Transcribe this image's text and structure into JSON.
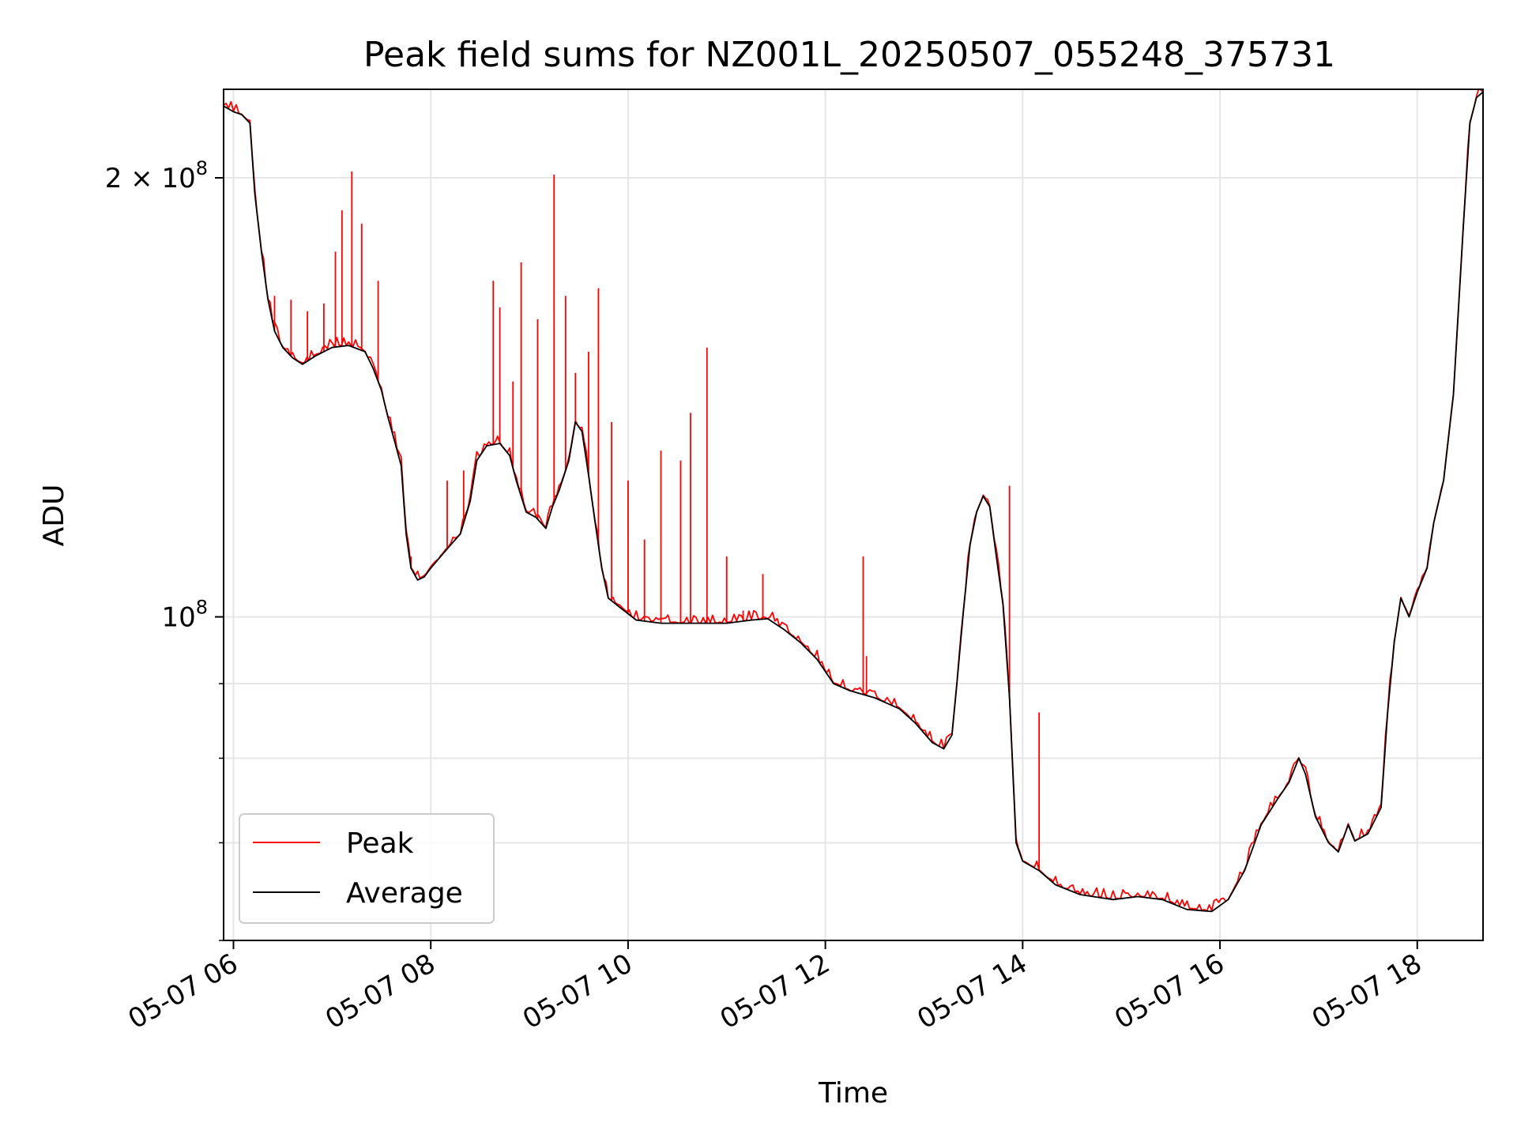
{
  "chart_data": {
    "type": "line",
    "title": "Peak field sums for NZ001L_20250507_055248_375731",
    "xlabel": "Time",
    "ylabel": "ADU",
    "y_scale": "log",
    "grid": true,
    "legend_position": "lower-left",
    "xlim": [
      "2025-05-07T05:54",
      "2025-05-07T18:40"
    ],
    "ylim": [
      60000000,
      230000000
    ],
    "x_ticks": [
      "05-07 06",
      "05-07 08",
      "05-07 10",
      "05-07 12",
      "05-07 14",
      "05-07 16",
      "05-07 18"
    ],
    "y_ticks": [
      {
        "value": 100000000,
        "base": "10",
        "exp": "8",
        "coef": ""
      },
      {
        "value": 200000000,
        "base": "10",
        "exp": "8",
        "coef": "2 × "
      }
    ],
    "series": [
      {
        "name": "Peak",
        "color": "#ff0000"
      },
      {
        "name": "Average",
        "color": "#000000"
      }
    ],
    "average_points": [
      [
        "2025-05-07T05:54",
        224000000
      ],
      [
        "2025-05-07T06:00",
        222000000
      ],
      [
        "2025-05-07T06:05",
        221000000
      ],
      [
        "2025-05-07T06:10",
        218000000
      ],
      [
        "2025-05-07T06:13",
        195000000
      ],
      [
        "2025-05-07T06:17",
        178000000
      ],
      [
        "2025-05-07T06:21",
        165000000
      ],
      [
        "2025-05-07T06:25",
        157000000
      ],
      [
        "2025-05-07T06:30",
        153000000
      ],
      [
        "2025-05-07T06:36",
        150500000
      ],
      [
        "2025-05-07T06:42",
        149000000
      ],
      [
        "2025-05-07T06:50",
        151000000
      ],
      [
        "2025-05-07T07:00",
        153000000
      ],
      [
        "2025-05-07T07:10",
        153500000
      ],
      [
        "2025-05-07T07:20",
        152000000
      ],
      [
        "2025-05-07T07:25",
        148000000
      ],
      [
        "2025-05-07T07:30",
        143000000
      ],
      [
        "2025-05-07T07:34",
        137000000
      ],
      [
        "2025-05-07T07:38",
        132000000
      ],
      [
        "2025-05-07T07:42",
        127000000
      ],
      [
        "2025-05-07T07:45",
        114000000
      ],
      [
        "2025-05-07T07:48",
        108000000
      ],
      [
        "2025-05-07T07:52",
        106000000
      ],
      [
        "2025-05-07T07:56",
        106500000
      ],
      [
        "2025-05-07T08:00",
        108000000
      ],
      [
        "2025-05-07T08:06",
        110000000
      ],
      [
        "2025-05-07T08:12",
        112000000
      ],
      [
        "2025-05-07T08:18",
        114000000
      ],
      [
        "2025-05-07T08:24",
        120000000
      ],
      [
        "2025-05-07T08:28",
        128000000
      ],
      [
        "2025-05-07T08:34",
        131000000
      ],
      [
        "2025-05-07T08:42",
        131500000
      ],
      [
        "2025-05-07T08:48",
        129000000
      ],
      [
        "2025-05-07T08:52",
        124000000
      ],
      [
        "2025-05-07T08:58",
        118000000
      ],
      [
        "2025-05-07T09:04",
        117000000
      ],
      [
        "2025-05-07T09:10",
        115000000
      ],
      [
        "2025-05-07T09:14",
        119000000
      ],
      [
        "2025-05-07T09:18",
        122000000
      ],
      [
        "2025-05-07T09:24",
        128000000
      ],
      [
        "2025-05-07T09:28",
        136000000
      ],
      [
        "2025-05-07T09:32",
        134000000
      ],
      [
        "2025-05-07T09:36",
        125000000
      ],
      [
        "2025-05-07T09:40",
        116000000
      ],
      [
        "2025-05-07T09:44",
        108000000
      ],
      [
        "2025-05-07T09:48",
        103000000
      ],
      [
        "2025-05-07T09:55",
        101500000
      ],
      [
        "2025-05-07T10:05",
        99500000
      ],
      [
        "2025-05-07T10:20",
        99000000
      ],
      [
        "2025-05-07T10:40",
        99000000
      ],
      [
        "2025-05-07T11:00",
        99000000
      ],
      [
        "2025-05-07T11:15",
        99500000
      ],
      [
        "2025-05-07T11:25",
        99700000
      ],
      [
        "2025-05-07T11:35",
        98000000
      ],
      [
        "2025-05-07T11:45",
        96000000
      ],
      [
        "2025-05-07T11:55",
        93500000
      ],
      [
        "2025-05-07T12:05",
        90000000
      ],
      [
        "2025-05-07T12:15",
        89000000
      ],
      [
        "2025-05-07T12:30",
        88000000
      ],
      [
        "2025-05-07T12:45",
        86500000
      ],
      [
        "2025-05-07T12:55",
        84500000
      ],
      [
        "2025-05-07T13:05",
        82000000
      ],
      [
        "2025-05-07T13:12",
        81200000
      ],
      [
        "2025-05-07T13:17",
        83000000
      ],
      [
        "2025-05-07T13:20",
        90000000
      ],
      [
        "2025-05-07T13:24",
        101000000
      ],
      [
        "2025-05-07T13:28",
        112000000
      ],
      [
        "2025-05-07T13:32",
        118000000
      ],
      [
        "2025-05-07T13:36",
        121000000
      ],
      [
        "2025-05-07T13:40",
        119000000
      ],
      [
        "2025-05-07T13:44",
        110000000
      ],
      [
        "2025-05-07T13:48",
        102000000
      ],
      [
        "2025-05-07T13:52",
        88000000
      ],
      [
        "2025-05-07T13:56",
        70000000
      ],
      [
        "2025-05-07T14:00",
        68000000
      ],
      [
        "2025-05-07T14:10",
        67000000
      ],
      [
        "2025-05-07T14:20",
        65500000
      ],
      [
        "2025-05-07T14:35",
        64500000
      ],
      [
        "2025-05-07T14:55",
        64000000
      ],
      [
        "2025-05-07T15:10",
        64300000
      ],
      [
        "2025-05-07T15:25",
        64000000
      ],
      [
        "2025-05-07T15:40",
        63000000
      ],
      [
        "2025-05-07T15:55",
        62800000
      ],
      [
        "2025-05-07T16:05",
        64000000
      ],
      [
        "2025-05-07T16:15",
        67000000
      ],
      [
        "2025-05-07T16:25",
        72000000
      ],
      [
        "2025-05-07T16:35",
        75000000
      ],
      [
        "2025-05-07T16:42",
        77000000
      ],
      [
        "2025-05-07T16:48",
        80000000
      ],
      [
        "2025-05-07T16:52",
        78000000
      ],
      [
        "2025-05-07T16:58",
        73000000
      ],
      [
        "2025-05-07T17:06",
        70000000
      ],
      [
        "2025-05-07T17:12",
        69000000
      ],
      [
        "2025-05-07T17:18",
        72000000
      ],
      [
        "2025-05-07T17:22",
        70200000
      ],
      [
        "2025-05-07T17:30",
        71000000
      ],
      [
        "2025-05-07T17:38",
        74000000
      ],
      [
        "2025-05-07T17:42",
        86000000
      ],
      [
        "2025-05-07T17:46",
        96000000
      ],
      [
        "2025-05-07T17:50",
        103000000
      ],
      [
        "2025-05-07T17:55",
        100000000
      ],
      [
        "2025-05-07T18:00",
        104000000
      ],
      [
        "2025-05-07T18:06",
        108000000
      ],
      [
        "2025-05-07T18:10",
        116000000
      ],
      [
        "2025-05-07T18:16",
        124000000
      ],
      [
        "2025-05-07T18:22",
        142000000
      ],
      [
        "2025-05-07T18:28",
        185000000
      ],
      [
        "2025-05-07T18:32",
        218000000
      ],
      [
        "2025-05-07T18:36",
        227000000
      ],
      [
        "2025-05-07T18:40",
        229000000
      ]
    ],
    "peak_spikes": [
      [
        "2025-05-07T06:25",
        166000000
      ],
      [
        "2025-05-07T06:35",
        165000000
      ],
      [
        "2025-05-07T06:45",
        162000000
      ],
      [
        "2025-05-07T06:55",
        164000000
      ],
      [
        "2025-05-07T07:02",
        178000000
      ],
      [
        "2025-05-07T07:06",
        190000000
      ],
      [
        "2025-05-07T07:12",
        202000000
      ],
      [
        "2025-05-07T07:18",
        186000000
      ],
      [
        "2025-05-07T07:28",
        170000000
      ],
      [
        "2025-05-07T07:48",
        110000000
      ],
      [
        "2025-05-07T08:10",
        124000000
      ],
      [
        "2025-05-07T08:20",
        126000000
      ],
      [
        "2025-05-07T08:38",
        170000000
      ],
      [
        "2025-05-07T08:42",
        163000000
      ],
      [
        "2025-05-07T08:50",
        145000000
      ],
      [
        "2025-05-07T08:55",
        175000000
      ],
      [
        "2025-05-07T09:05",
        160000000
      ],
      [
        "2025-05-07T09:15",
        201000000
      ],
      [
        "2025-05-07T09:22",
        166000000
      ],
      [
        "2025-05-07T09:28",
        147000000
      ],
      [
        "2025-05-07T09:36",
        152000000
      ],
      [
        "2025-05-07T09:42",
        168000000
      ],
      [
        "2025-05-07T09:50",
        136000000
      ],
      [
        "2025-05-07T10:00",
        124000000
      ],
      [
        "2025-05-07T10:10",
        113000000
      ],
      [
        "2025-05-07T10:20",
        130000000
      ],
      [
        "2025-05-07T10:32",
        128000000
      ],
      [
        "2025-05-07T10:38",
        138000000
      ],
      [
        "2025-05-07T10:48",
        153000000
      ],
      [
        "2025-05-07T11:00",
        110000000
      ],
      [
        "2025-05-07T11:10",
        101000000
      ],
      [
        "2025-05-07T11:22",
        107000000
      ],
      [
        "2025-05-07T12:23",
        110000000
      ],
      [
        "2025-05-07T12:25",
        94000000
      ],
      [
        "2025-05-07T13:52",
        123000000
      ],
      [
        "2025-05-07T14:10",
        86000000
      ]
    ]
  }
}
